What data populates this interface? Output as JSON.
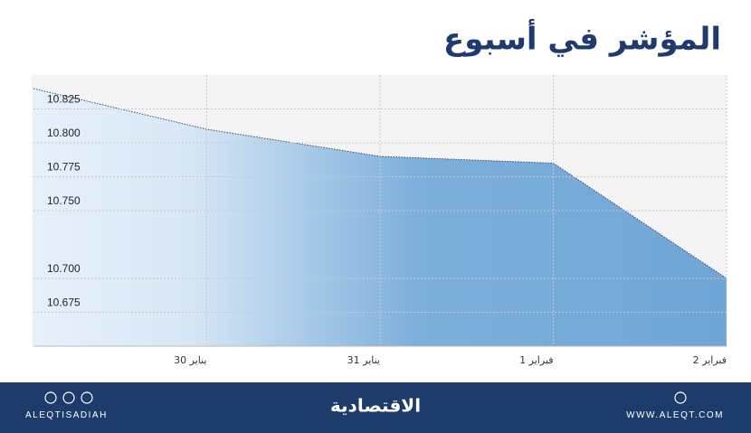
{
  "chart_data": {
    "type": "area",
    "title": "المؤشر في أسبوع",
    "categories": [
      null,
      "30 يناير",
      "31 يناير",
      "1 فبراير",
      "2 فبراير"
    ],
    "values": [
      10.84,
      10.81,
      10.79,
      10.785,
      10.7
    ],
    "color": "#6fa6d6",
    "ylim": [
      10.65,
      10.85
    ],
    "yticks": [
      10.675,
      {
        "value": 10.7,
        "label": "10.700"
      },
      {
        "value": 10.75,
        "label": "10.750"
      },
      10.775,
      {
        "value": 10.8,
        "label": "10.800"
      },
      10.825
    ],
    "grid": true
  },
  "footer": {
    "left": "ALEQTISADIAH",
    "center": "الاقتصادية",
    "right": "WWW.ALEQT.COM"
  }
}
